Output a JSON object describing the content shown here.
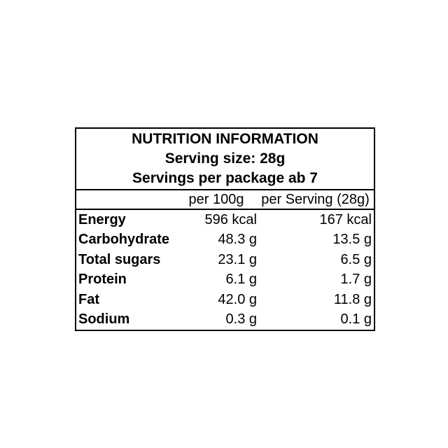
{
  "page": {
    "background_color": "#ffffff",
    "text_color": "#000000",
    "border_color": "#000000"
  },
  "table": {
    "title": "NUTRITION INFORMATION",
    "serving_size_line": "Serving size: 28g",
    "servings_per_package_line": "Servings per package ab 7",
    "columns": {
      "per100g": "per 100g",
      "perServing": "per Serving (28g)"
    },
    "rows": [
      {
        "label": "Energy",
        "per100g": "596 kcal",
        "perServing": "167 kcal"
      },
      {
        "label": "Carbohydrate",
        "per100g": "48.3 g",
        "perServing": "13.5 g"
      },
      {
        "label": "Total sugars",
        "per100g": "23.1 g",
        "perServing": "6.5 g"
      },
      {
        "label": "Protein",
        "per100g": "6.1 g",
        "perServing": "1.7 g"
      },
      {
        "label": "Fat",
        "per100g": "42.0 g",
        "perServing": "11.8 g"
      },
      {
        "label": "Sodium",
        "per100g": "0.3 g",
        "perServing": "0.1 g"
      }
    ]
  }
}
